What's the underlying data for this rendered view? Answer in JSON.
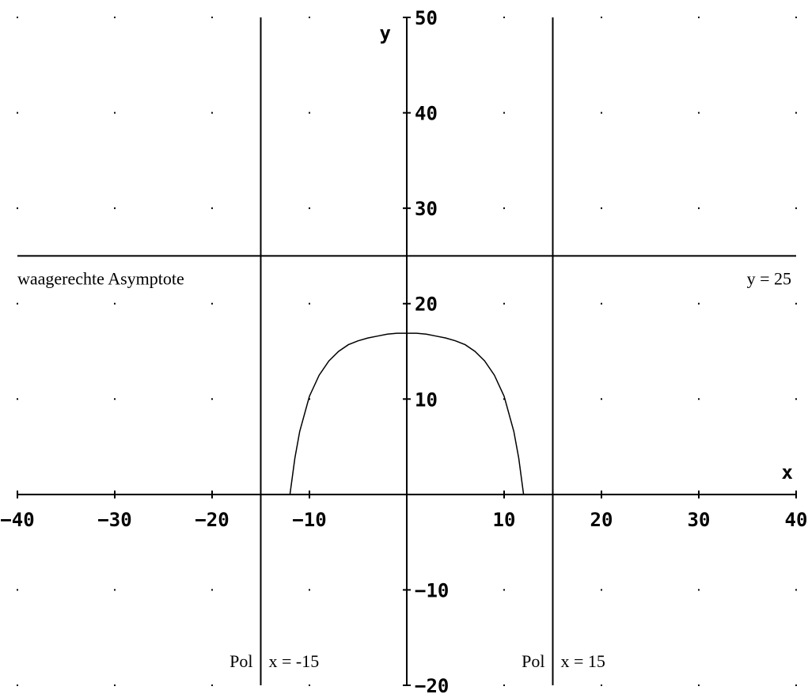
{
  "chart_data": {
    "type": "line",
    "xlabel": "x",
    "ylabel": "y",
    "xlim": [
      -40,
      40
    ],
    "ylim": [
      -20,
      50
    ],
    "grid": "dots",
    "x_ticks": [
      -40,
      -30,
      -20,
      -10,
      10,
      20,
      30,
      40
    ],
    "y_ticks": [
      -20,
      -10,
      10,
      20,
      30,
      40,
      50
    ],
    "series": [
      {
        "x": [
          -12,
          -11.5,
          -11,
          -10,
          -9,
          -8,
          -7,
          -6,
          -5,
          -4,
          -3,
          -2,
          -1,
          0,
          1,
          2,
          3,
          4,
          5,
          6,
          7,
          8,
          9,
          10,
          11,
          11.5,
          12
        ],
        "y": [
          0,
          3.8,
          6.6,
          10.3,
          12.5,
          14.0,
          15.0,
          15.7,
          16.1,
          16.4,
          16.6,
          16.8,
          16.9,
          16.9,
          16.9,
          16.8,
          16.6,
          16.4,
          16.1,
          15.7,
          15.0,
          14.0,
          12.5,
          10.3,
          6.6,
          3.8,
          0
        ]
      }
    ],
    "asymptotes": {
      "horizontal": {
        "y": 25,
        "label_left": "waagerechte Asymptote",
        "label_right": "y = 25"
      },
      "poles": [
        {
          "x": -15,
          "label_left": "Pol",
          "label_right": "x = -15"
        },
        {
          "x": 15,
          "label_left": "Pol",
          "label_right": "x = 15"
        }
      ]
    }
  }
}
